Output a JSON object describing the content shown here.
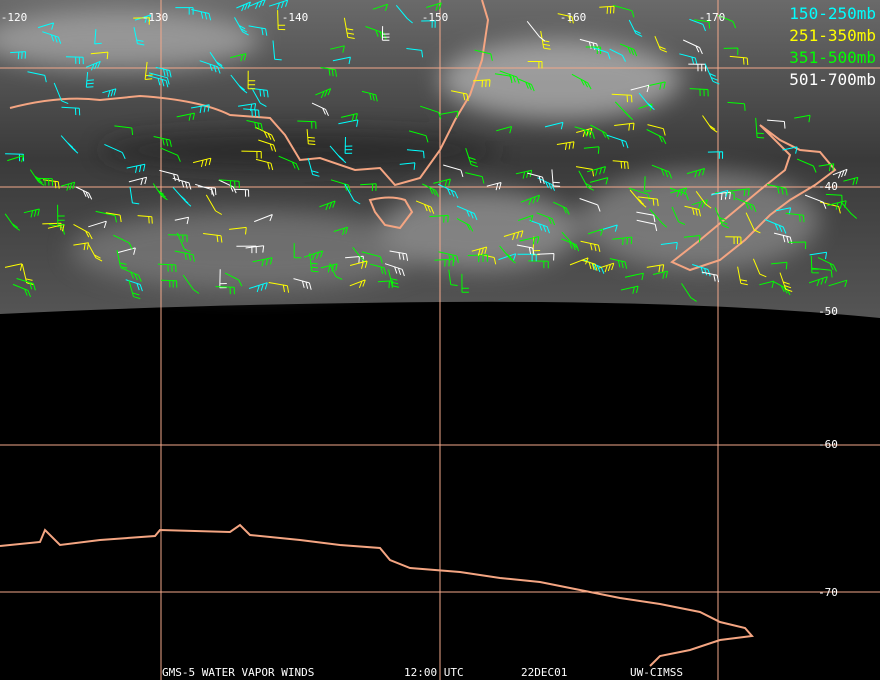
{
  "map": {
    "longitude_labels": [
      -120,
      -130,
      -140,
      -150,
      -160,
      -170
    ],
    "latitude_labels": [
      -40,
      -50,
      -60,
      -70
    ],
    "legend": [
      "150-250mb",
      "251-350mb",
      "351-500mb",
      "501-700mb"
    ],
    "footer": [
      "GMS-5 WATER VAPOR WINDS",
      "12:00 UTC",
      "22DEC01",
      "UW-CIMSS"
    ]
  }
}
